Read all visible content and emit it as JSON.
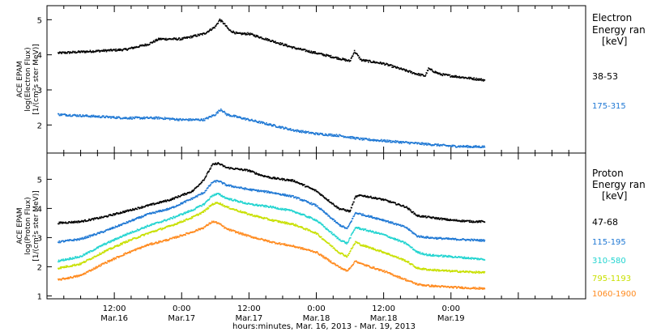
{
  "colors": {
    "black": "#000000",
    "blue": "#1f78d4",
    "cyan": "#22d4d0",
    "yellowgreen": "#c8e000",
    "orange": "#ff8a1e"
  },
  "xlabel": "hours:minutes, Mar. 16, 2013 - Mar. 19, 2013",
  "x_ticks": [
    {
      "time": "12:00",
      "date": "Mar.16",
      "hours": 12
    },
    {
      "time": "0:00",
      "date": "Mar.17",
      "hours": 24
    },
    {
      "time": "12:00",
      "date": "Mar.17",
      "hours": 36
    },
    {
      "time": "0:00",
      "date": "Mar.18",
      "hours": 48
    },
    {
      "time": "12:00",
      "date": "Mar.18",
      "hours": 60
    },
    {
      "time": "0:00",
      "date": "Mar.19",
      "hours": 72
    }
  ],
  "chart_data": [
    {
      "type": "scatter",
      "ylabel": [
        "ACE EPAM",
        "log(Electron Flux)",
        "[1/(cm²s ster MeV)]"
      ],
      "ylim": [
        1.2,
        5.4
      ],
      "yticks": [
        2,
        3,
        4,
        5
      ],
      "legend": {
        "title": [
          "Electron",
          "Energy ran",
          "[keV]"
        ],
        "placement": "right"
      },
      "series": [
        {
          "name": "38-53",
          "color": "black",
          "x": [
            2,
            8,
            14,
            18,
            20,
            24,
            28,
            30,
            30.8,
            31.5,
            32.5,
            34,
            36,
            40,
            44,
            48,
            52,
            54,
            54.8,
            56,
            60,
            64,
            66,
            67.4,
            68,
            70,
            72,
            76,
            78
          ],
          "y": [
            4.05,
            4.1,
            4.15,
            4.3,
            4.45,
            4.45,
            4.6,
            4.8,
            5.0,
            4.9,
            4.7,
            4.6,
            4.6,
            4.4,
            4.2,
            4.05,
            3.9,
            3.82,
            4.1,
            3.85,
            3.75,
            3.55,
            3.45,
            3.4,
            3.6,
            3.45,
            3.4,
            3.32,
            3.28
          ]
        },
        {
          "name": "175-315",
          "color": "blue",
          "x": [
            2,
            8,
            14,
            20,
            24,
            28,
            30,
            31,
            32,
            36,
            40,
            44,
            48,
            52,
            56,
            60,
            64,
            68,
            72,
            76,
            78
          ],
          "y": [
            2.3,
            2.25,
            2.2,
            2.2,
            2.15,
            2.15,
            2.3,
            2.45,
            2.3,
            2.15,
            2.0,
            1.85,
            1.75,
            1.7,
            1.6,
            1.55,
            1.5,
            1.45,
            1.4,
            1.38,
            1.38
          ]
        }
      ]
    },
    {
      "type": "scatter",
      "ylabel": [
        "ACE EPAM",
        "log(Proton Flux)",
        "[1/(cm²s ster MeV)]"
      ],
      "ylim": [
        0.9,
        5.9
      ],
      "yticks": [
        1,
        2,
        3,
        4,
        5
      ],
      "legend": {
        "title": [
          "Proton",
          "Energy ran",
          "[keV]"
        ],
        "placement": "right"
      },
      "series": [
        {
          "name": "47-68",
          "color": "black",
          "x": [
            2,
            6,
            10,
            14,
            18,
            22,
            26,
            28,
            29.5,
            30.5,
            32,
            34,
            36,
            38,
            40,
            44,
            48,
            52,
            54,
            55,
            56,
            60,
            64,
            66,
            68,
            72,
            76,
            78
          ],
          "y": [
            3.5,
            3.55,
            3.7,
            3.9,
            4.1,
            4.3,
            4.6,
            5.0,
            5.5,
            5.55,
            5.4,
            5.35,
            5.3,
            5.15,
            5.05,
            4.95,
            4.6,
            4.0,
            3.9,
            4.4,
            4.45,
            4.3,
            4.05,
            3.75,
            3.7,
            3.6,
            3.55,
            3.55
          ]
        },
        {
          "name": "115-195",
          "color": "blue",
          "x": [
            2,
            6,
            10,
            14,
            18,
            22,
            26,
            28,
            29.5,
            30.5,
            32,
            36,
            40,
            44,
            48,
            52,
            53.5,
            55,
            56,
            60,
            64,
            66,
            68,
            72,
            78
          ],
          "y": [
            2.85,
            2.95,
            3.2,
            3.5,
            3.8,
            4.0,
            4.35,
            4.55,
            4.9,
            4.95,
            4.8,
            4.65,
            4.55,
            4.4,
            4.1,
            3.45,
            3.3,
            3.85,
            3.8,
            3.6,
            3.35,
            3.05,
            3.0,
            2.95,
            2.9
          ]
        },
        {
          "name": "310-580",
          "color": "cyan",
          "x": [
            2,
            6,
            10,
            14,
            18,
            22,
            26,
            28,
            29.5,
            30.5,
            32,
            36,
            40,
            44,
            48,
            52,
            53.5,
            55,
            56,
            60,
            64,
            66,
            68,
            72,
            78
          ],
          "y": [
            2.2,
            2.35,
            2.75,
            3.1,
            3.4,
            3.65,
            3.95,
            4.15,
            4.45,
            4.5,
            4.35,
            4.15,
            4.05,
            3.9,
            3.6,
            2.95,
            2.8,
            3.35,
            3.3,
            3.1,
            2.8,
            2.5,
            2.4,
            2.35,
            2.25
          ]
        },
        {
          "name": "795-1193",
          "color": "yellowgreen",
          "x": [
            2,
            6,
            10,
            14,
            18,
            22,
            26,
            28,
            29.5,
            30.5,
            32,
            36,
            40,
            44,
            48,
            52,
            53.5,
            55,
            56,
            60,
            64,
            66,
            68,
            72,
            78
          ],
          "y": [
            1.95,
            2.1,
            2.5,
            2.85,
            3.15,
            3.4,
            3.7,
            3.9,
            4.15,
            4.2,
            4.05,
            3.8,
            3.6,
            3.45,
            3.15,
            2.5,
            2.35,
            2.85,
            2.75,
            2.5,
            2.2,
            1.95,
            1.9,
            1.85,
            1.8
          ]
        },
        {
          "name": "1060-1900",
          "color": "orange",
          "x": [
            2,
            6,
            10,
            14,
            18,
            22,
            26,
            28,
            29.5,
            30.5,
            32,
            36,
            40,
            44,
            48,
            52,
            53.5,
            55,
            56,
            60,
            64,
            66,
            68,
            72,
            78
          ],
          "y": [
            1.55,
            1.7,
            2.1,
            2.45,
            2.75,
            2.95,
            3.2,
            3.35,
            3.55,
            3.5,
            3.3,
            3.05,
            2.85,
            2.7,
            2.5,
            2.0,
            1.85,
            2.2,
            2.1,
            1.85,
            1.55,
            1.4,
            1.35,
            1.3,
            1.25
          ]
        }
      ]
    }
  ]
}
